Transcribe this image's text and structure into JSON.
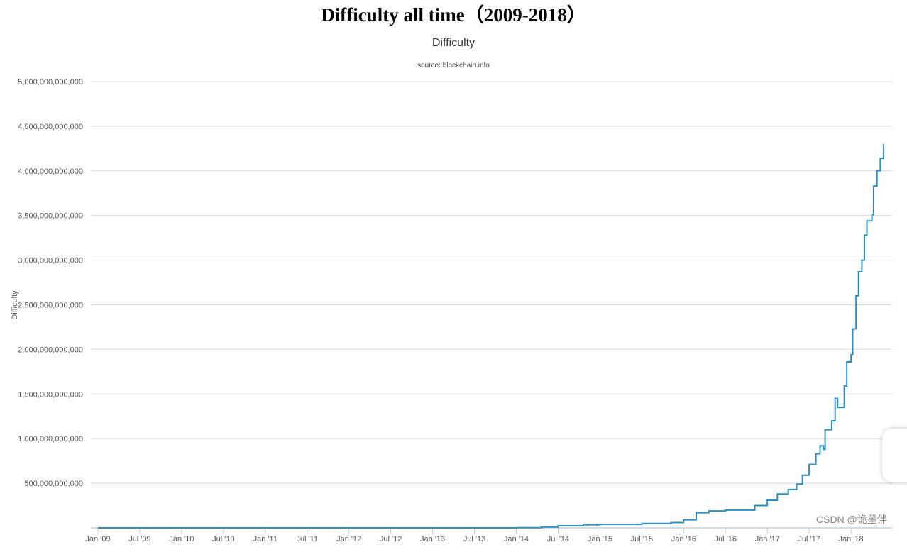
{
  "chart_data": {
    "type": "line",
    "title": "Difficulty all time（2009-2018）",
    "subtitle": "Difficulty",
    "source": "source: blockchain.info",
    "xlabel": "",
    "ylabel": "Difficulty",
    "ylim": [
      0,
      5000000000000
    ],
    "xlim": [
      2008.92,
      2018.5
    ],
    "grid": true,
    "y_ticks": [
      {
        "value": 500000000000,
        "label": "500,000,000,000"
      },
      {
        "value": 1000000000000,
        "label": "1,000,000,000,000"
      },
      {
        "value": 1500000000000,
        "label": "1,500,000,000,000"
      },
      {
        "value": 2000000000000,
        "label": "2,000,000,000,000"
      },
      {
        "value": 2500000000000,
        "label": "2,500,000,000,000"
      },
      {
        "value": 3000000000000,
        "label": "3,000,000,000,000"
      },
      {
        "value": 3500000000000,
        "label": "3,500,000,000,000"
      },
      {
        "value": 4000000000000,
        "label": "4,000,000,000,000"
      },
      {
        "value": 4500000000000,
        "label": "4,500,000,000,000"
      },
      {
        "value": 5000000000000,
        "label": "5,000,000,000,000"
      }
    ],
    "x_ticks": [
      {
        "value": 2009.0,
        "label": "Jan '09"
      },
      {
        "value": 2009.5,
        "label": "Jul '09"
      },
      {
        "value": 2010.0,
        "label": "Jan '10"
      },
      {
        "value": 2010.5,
        "label": "Jul '10"
      },
      {
        "value": 2011.0,
        "label": "Jan '11"
      },
      {
        "value": 2011.5,
        "label": "Jul '11"
      },
      {
        "value": 2012.0,
        "label": "Jan '12"
      },
      {
        "value": 2012.5,
        "label": "Jul '12"
      },
      {
        "value": 2013.0,
        "label": "Jan '13"
      },
      {
        "value": 2013.5,
        "label": "Jul '13"
      },
      {
        "value": 2014.0,
        "label": "Jan '14"
      },
      {
        "value": 2014.5,
        "label": "Jul '14"
      },
      {
        "value": 2015.0,
        "label": "Jan '15"
      },
      {
        "value": 2015.5,
        "label": "Jul '15"
      },
      {
        "value": 2016.0,
        "label": "Jan '16"
      },
      {
        "value": 2016.5,
        "label": "Jul '16"
      },
      {
        "value": 2017.0,
        "label": "Jan '17"
      },
      {
        "value": 2017.5,
        "label": "Jul '17"
      },
      {
        "value": 2018.0,
        "label": "Jan '18"
      }
    ],
    "series": [
      {
        "name": "Difficulty",
        "color": "#2a8fc4",
        "x": [
          2009.0,
          2013.5,
          2014.0,
          2014.3,
          2014.5,
          2014.8,
          2015.0,
          2015.5,
          2015.85,
          2016.0,
          2016.15,
          2016.3,
          2016.5,
          2016.85,
          2017.0,
          2017.12,
          2017.25,
          2017.35,
          2017.42,
          2017.5,
          2017.58,
          2017.63,
          2017.67,
          2017.69,
          2017.77,
          2017.81,
          2017.84,
          2017.91,
          2017.92,
          2017.95,
          2018.0,
          2018.02,
          2018.06,
          2018.09,
          2018.13,
          2018.16,
          2018.19,
          2018.25,
          2018.27,
          2018.31,
          2018.35,
          2018.39
        ],
        "y": [
          0,
          0,
          2000000000,
          10000000000,
          24000000000,
          35000000000,
          40000000000,
          50000000000,
          60000000000,
          90000000000,
          170000000000,
          190000000000,
          200000000000,
          250000000000,
          310000000000,
          380000000000,
          430000000000,
          490000000000,
          590000000000,
          710000000000,
          830000000000,
          920000000000,
          880000000000,
          1100000000000,
          1200000000000,
          1450000000000,
          1350000000000,
          1350000000000,
          1590000000000,
          1860000000000,
          1940000000000,
          2230000000000,
          2600000000000,
          2870000000000,
          3000000000000,
          3280000000000,
          3440000000000,
          3510000000000,
          3830000000000,
          4000000000000,
          4140000000000,
          4300000000000
        ]
      }
    ]
  },
  "watermark": "CSDN @诡墨伴"
}
